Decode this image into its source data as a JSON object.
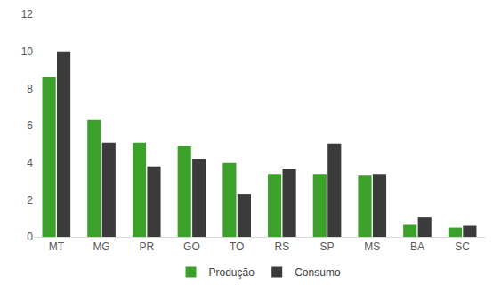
{
  "chart_data": {
    "type": "bar",
    "categories": [
      "MT",
      "MG",
      "PR",
      "GO",
      "TO",
      "RS",
      "SP",
      "MS",
      "BA",
      "SC"
    ],
    "series": [
      {
        "name": "Produção",
        "color": "#3ca12b",
        "values": [
          8.6,
          6.3,
          5.05,
          4.9,
          4.0,
          3.4,
          3.4,
          3.3,
          0.65,
          0.5
        ]
      },
      {
        "name": "Consumo",
        "color": "#3b3b3b",
        "values": [
          10.0,
          5.05,
          3.8,
          4.2,
          2.3,
          3.65,
          5.0,
          3.4,
          1.05,
          0.6
        ]
      }
    ],
    "ylim": [
      0,
      12
    ],
    "yticks": [
      0,
      2,
      4,
      6,
      8,
      10,
      12
    ],
    "grid": false,
    "legend": "bottom"
  }
}
